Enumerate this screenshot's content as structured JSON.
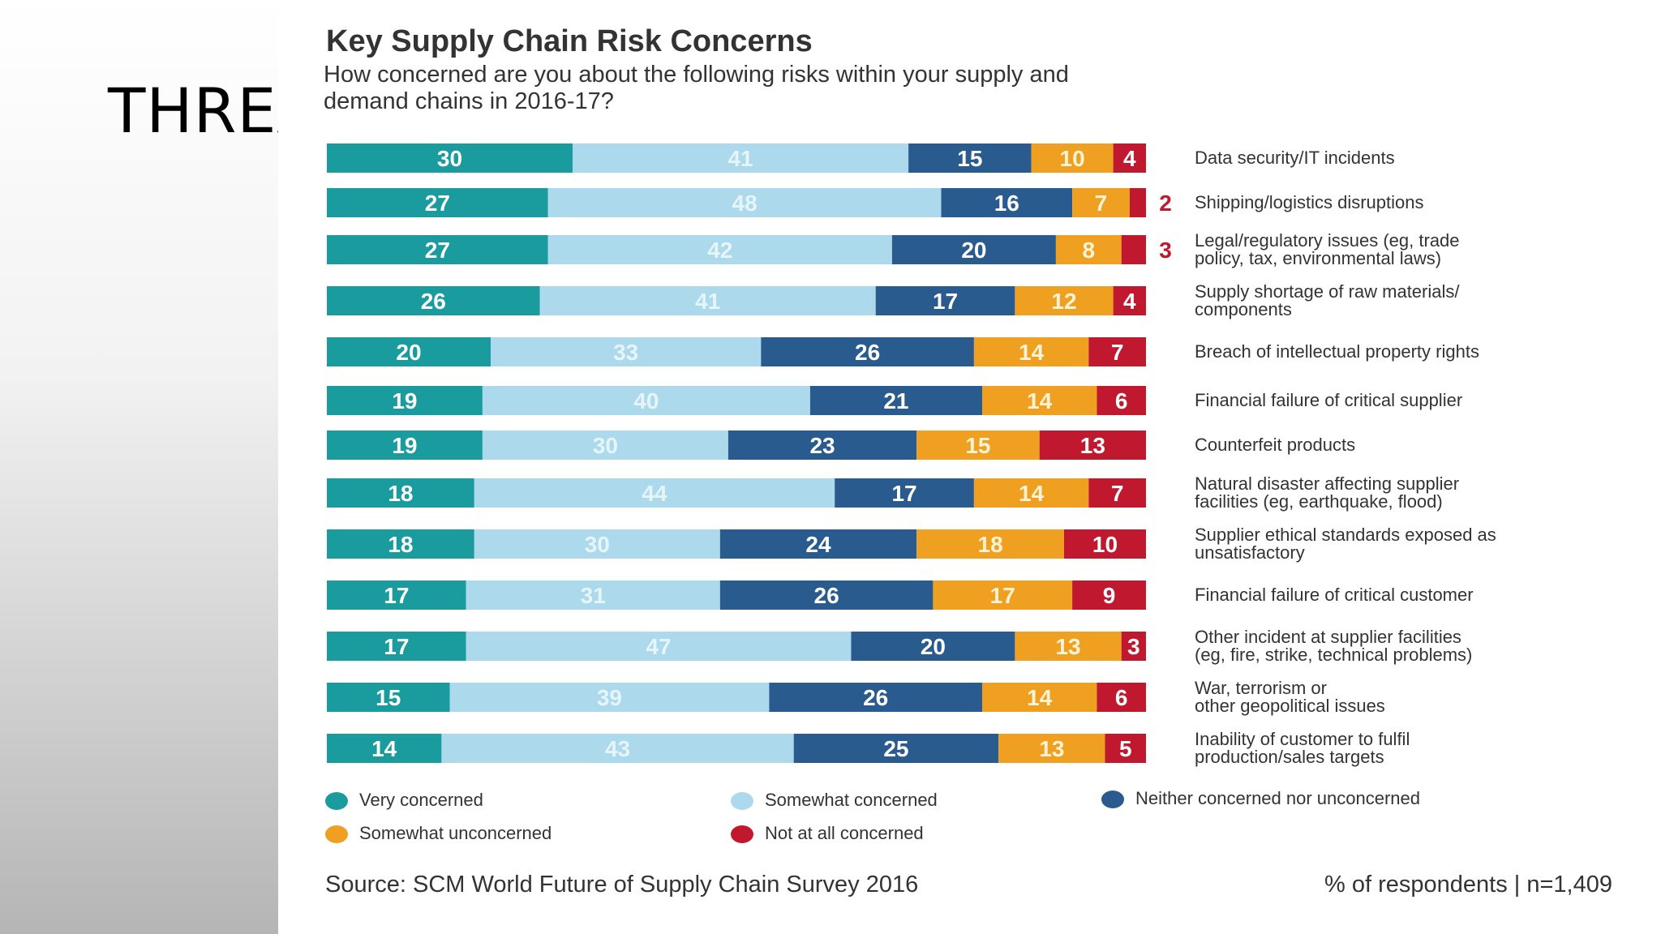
{
  "slide": {
    "title": "THREA"
  },
  "chart_data": {
    "type": "bar",
    "orientation": "horizontal",
    "stacked": true,
    "title": "Key Supply Chain Risk Concerns",
    "subtitle": "How concerned are you about the following risks within your supply and demand chains in 2016-17?",
    "categories": [
      "Data security/IT incidents",
      "Shipping/logistics disruptions",
      "Legal/regulatory issues (eg, trade policy, tax, environmental laws)",
      "Supply shortage of raw materials/ components",
      "Breach of intellectual property rights",
      "Financial failure of critical supplier",
      "Counterfeit products",
      "Natural disaster affecting supplier facilities (eg, earthquake, flood)",
      "Supplier ethical standards exposed as unsatisfactory",
      "Financial failure of critical customer",
      "Other incident at supplier facilities (eg, fire, strike, technical problems)",
      "War, terrorism or other geopolitical issues",
      "Inability of customer to fulfil production/sales targets"
    ],
    "category_lines": [
      [
        "Data security/IT incidents"
      ],
      [
        "Shipping/logistics disruptions"
      ],
      [
        "Legal/regulatory issues (eg, trade",
        "policy, tax, environmental laws)"
      ],
      [
        "Supply shortage of raw materials/",
        "components"
      ],
      [
        "Breach of intellectual property rights"
      ],
      [
        "Financial failure of critical supplier"
      ],
      [
        "Counterfeit products"
      ],
      [
        "Natural disaster affecting supplier",
        "facilities (eg, earthquake, flood)"
      ],
      [
        "Supplier ethical standards exposed as",
        "unsatisfactory"
      ],
      [
        "Financial failure of critical customer"
      ],
      [
        "Other incident at supplier facilities",
        "(eg, fire, strike, technical problems)"
      ],
      [
        "War, terrorism or",
        "other geopolitical issues"
      ],
      [
        "Inability of customer to fulfil",
        "production/sales targets"
      ]
    ],
    "series": [
      {
        "name": "Very concerned",
        "color": "#1a9c9f",
        "label_color": "#ffffff",
        "values": [
          30,
          27,
          27,
          26,
          20,
          19,
          19,
          18,
          18,
          17,
          17,
          15,
          14
        ]
      },
      {
        "name": "Somewhat concerned",
        "color": "#acd9ec",
        "label_color": "#e6f5fb",
        "values": [
          41,
          48,
          42,
          41,
          33,
          40,
          30,
          44,
          30,
          31,
          47,
          39,
          43
        ]
      },
      {
        "name": "Neither concerned nor unconcerned",
        "color": "#2a5b8e",
        "label_color": "#ffffff",
        "values": [
          15,
          16,
          20,
          17,
          26,
          21,
          23,
          17,
          24,
          26,
          20,
          26,
          25
        ]
      },
      {
        "name": "Somewhat unconcerned",
        "color": "#f0a020",
        "label_color": "#fff3d6",
        "values": [
          10,
          7,
          8,
          12,
          14,
          14,
          15,
          14,
          18,
          17,
          13,
          14,
          13
        ]
      },
      {
        "name": "Not at all concerned",
        "color": "#c0182e",
        "label_color": "#ffffff",
        "values": [
          4,
          2,
          3,
          4,
          7,
          6,
          13,
          7,
          10,
          9,
          3,
          6,
          5
        ]
      }
    ],
    "outside_labels": [
      false,
      true,
      true,
      false,
      false,
      false,
      false,
      false,
      false,
      false,
      false,
      false,
      false
    ],
    "xlim": [
      0,
      100
    ],
    "legend_position": "bottom",
    "source": "Source: SCM World Future of Supply Chain Survey 2016",
    "meta": "% of respondents | n=1,409"
  }
}
